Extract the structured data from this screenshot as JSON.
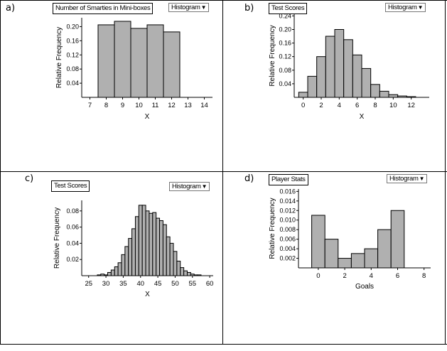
{
  "panels": {
    "a": {
      "letter": "a)",
      "title": "Number of Smarties in Mini-boxes",
      "menu": "Histogram"
    },
    "b": {
      "letter": "b)",
      "title": "Test Scores",
      "menu": "Histogram"
    },
    "c": {
      "letter": "c)",
      "title": "Test Scores",
      "menu": "Histogram"
    },
    "d": {
      "letter": "d)",
      "title": "Player Stats",
      "menu": "Histogram"
    }
  },
  "chart_data": [
    {
      "id": "a",
      "type": "bar",
      "title": "Number of Smarties in Mini-boxes",
      "xlabel": "X",
      "ylabel": "Relative Frequency",
      "bin_edges": [
        7.5,
        8.5,
        9.5,
        10.5,
        11.5,
        12.5
      ],
      "values": [
        0.205,
        0.215,
        0.195,
        0.205,
        0.185
      ],
      "xlim": [
        6.5,
        14.5
      ],
      "ylim": [
        0,
        0.225
      ],
      "xticks": [
        7,
        8,
        9,
        10,
        11,
        12,
        13,
        14
      ],
      "yticks": [
        0.04,
        0.08,
        0.12,
        0.16,
        0.2
      ],
      "ytick_labels": [
        "0.04",
        "0.08",
        "0.12",
        "0.16",
        "0.20"
      ],
      "bar_color": "#b0b0b0"
    },
    {
      "id": "b",
      "type": "bar",
      "title": "Test Scores",
      "xlabel": "X",
      "ylabel": "Relative Frequency",
      "bin_edges": [
        -0.5,
        0.5,
        1.5,
        2.5,
        3.5,
        4.5,
        5.5,
        6.5,
        7.5,
        8.5,
        9.5,
        10.5,
        11.5,
        12.5
      ],
      "values": [
        0.015,
        0.062,
        0.12,
        0.18,
        0.2,
        0.17,
        0.125,
        0.085,
        0.038,
        0.018,
        0.008,
        0.004,
        0.002
      ],
      "xlim": [
        -1,
        14
      ],
      "ylim": [
        0,
        0.245
      ],
      "xticks": [
        0,
        2,
        4,
        6,
        8,
        10,
        12
      ],
      "yticks": [
        0.04,
        0.08,
        0.12,
        0.16,
        0.2,
        0.24
      ],
      "ytick_labels": [
        "0.04",
        "0.08",
        "0.12",
        "0.16",
        "0.20",
        "0.24"
      ],
      "bar_color": "#b0b0b0"
    },
    {
      "id": "c",
      "type": "bar",
      "title": "Test Scores",
      "xlabel": "X",
      "ylabel": "Relative Frequency",
      "bin_edges": [
        27.5,
        28.5,
        29.5,
        30.5,
        31.5,
        32.5,
        33.5,
        34.5,
        35.5,
        36.5,
        37.5,
        38.5,
        39.5,
        40.5,
        41.5,
        42.5,
        43.5,
        44.5,
        45.5,
        46.5,
        47.5,
        48.5,
        49.5,
        50.5,
        51.5,
        52.5,
        53.5,
        54.5,
        55.5,
        56.5,
        57.5
      ],
      "values": [
        0.001,
        0.002,
        0.001,
        0.004,
        0.007,
        0.011,
        0.016,
        0.026,
        0.036,
        0.046,
        0.058,
        0.073,
        0.087,
        0.087,
        0.08,
        0.077,
        0.078,
        0.071,
        0.068,
        0.063,
        0.048,
        0.04,
        0.03,
        0.018,
        0.01,
        0.006,
        0.004,
        0.002,
        0.001,
        0.001
      ],
      "xlim": [
        23,
        61
      ],
      "ylim": [
        0,
        0.093
      ],
      "xticks": [
        25,
        30,
        35,
        40,
        45,
        50,
        55,
        60
      ],
      "yticks": [
        0.02,
        0.04,
        0.06,
        0.08
      ],
      "ytick_labels": [
        "0.02",
        "0.04",
        "0.06",
        "0.08"
      ],
      "bar_color": "#b0b0b0"
    },
    {
      "id": "d",
      "type": "bar",
      "title": "Player Stats",
      "xlabel": "Goals",
      "ylabel": "Relative Frequency",
      "bin_edges": [
        -0.5,
        0.5,
        1.5,
        2.5,
        3.5,
        4.5,
        5.5,
        6.5
      ],
      "values": [
        0.011,
        0.006,
        0.002,
        0.003,
        0.004,
        0.008,
        0.012
      ],
      "xlim": [
        -1.5,
        8.5
      ],
      "ylim": [
        0,
        0.0165
      ],
      "xticks": [
        0,
        2,
        4,
        6,
        8
      ],
      "yticks": [
        0.002,
        0.004,
        0.006,
        0.008,
        0.01,
        0.012,
        0.014,
        0.016
      ],
      "ytick_labels": [
        "0.002",
        "0.004",
        "0.006",
        "0.008",
        "0.010",
        "0.012",
        "0.014",
        "0.016"
      ],
      "bar_color": "#b0b0b0"
    }
  ]
}
